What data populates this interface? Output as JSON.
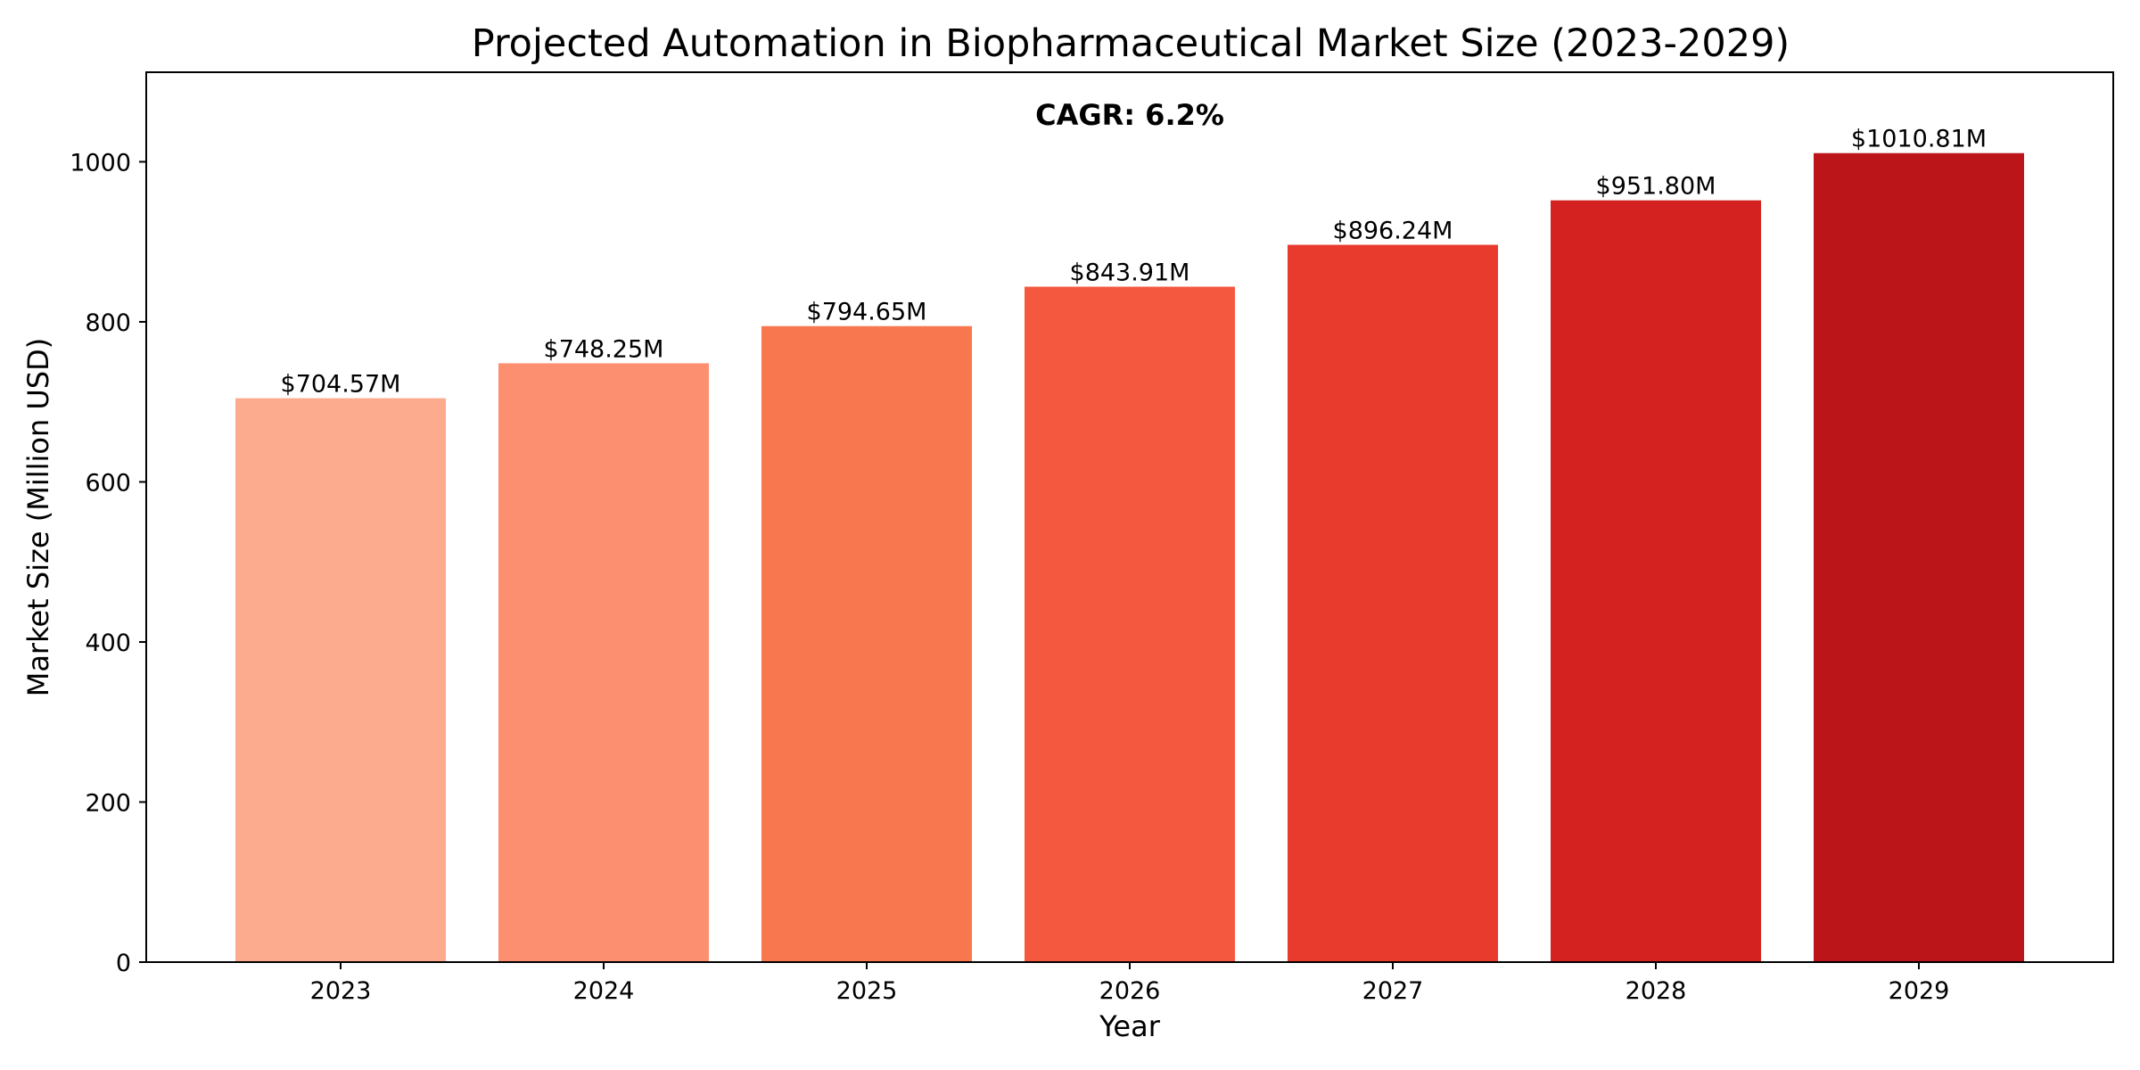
{
  "chart_data": {
    "type": "bar",
    "title": "Projected Automation in Biopharmaceutical Market Size (2023-2029)",
    "xlabel": "Year",
    "ylabel": "Market Size (Million USD)",
    "categories": [
      "2023",
      "2024",
      "2025",
      "2026",
      "2027",
      "2028",
      "2029"
    ],
    "values": [
      704.57,
      748.25,
      794.65,
      843.91,
      896.24,
      951.8,
      1010.81
    ],
    "value_labels": [
      "$704.57M",
      "$748.25M",
      "$794.65M",
      "$843.91M",
      "$896.24M",
      "$951.80M",
      "$1010.81M"
    ],
    "colors": [
      "#fcab8f",
      "#fc8f6f",
      "#f9774f",
      "#f4593f",
      "#e93a2e",
      "#d42221",
      "#bb151a"
    ],
    "ylim": [
      0,
      1111.89
    ],
    "yticks": [
      0,
      200,
      400,
      600,
      800,
      1000
    ],
    "annotation": "CAGR: 6.2%",
    "grid": false,
    "legend": false
  }
}
